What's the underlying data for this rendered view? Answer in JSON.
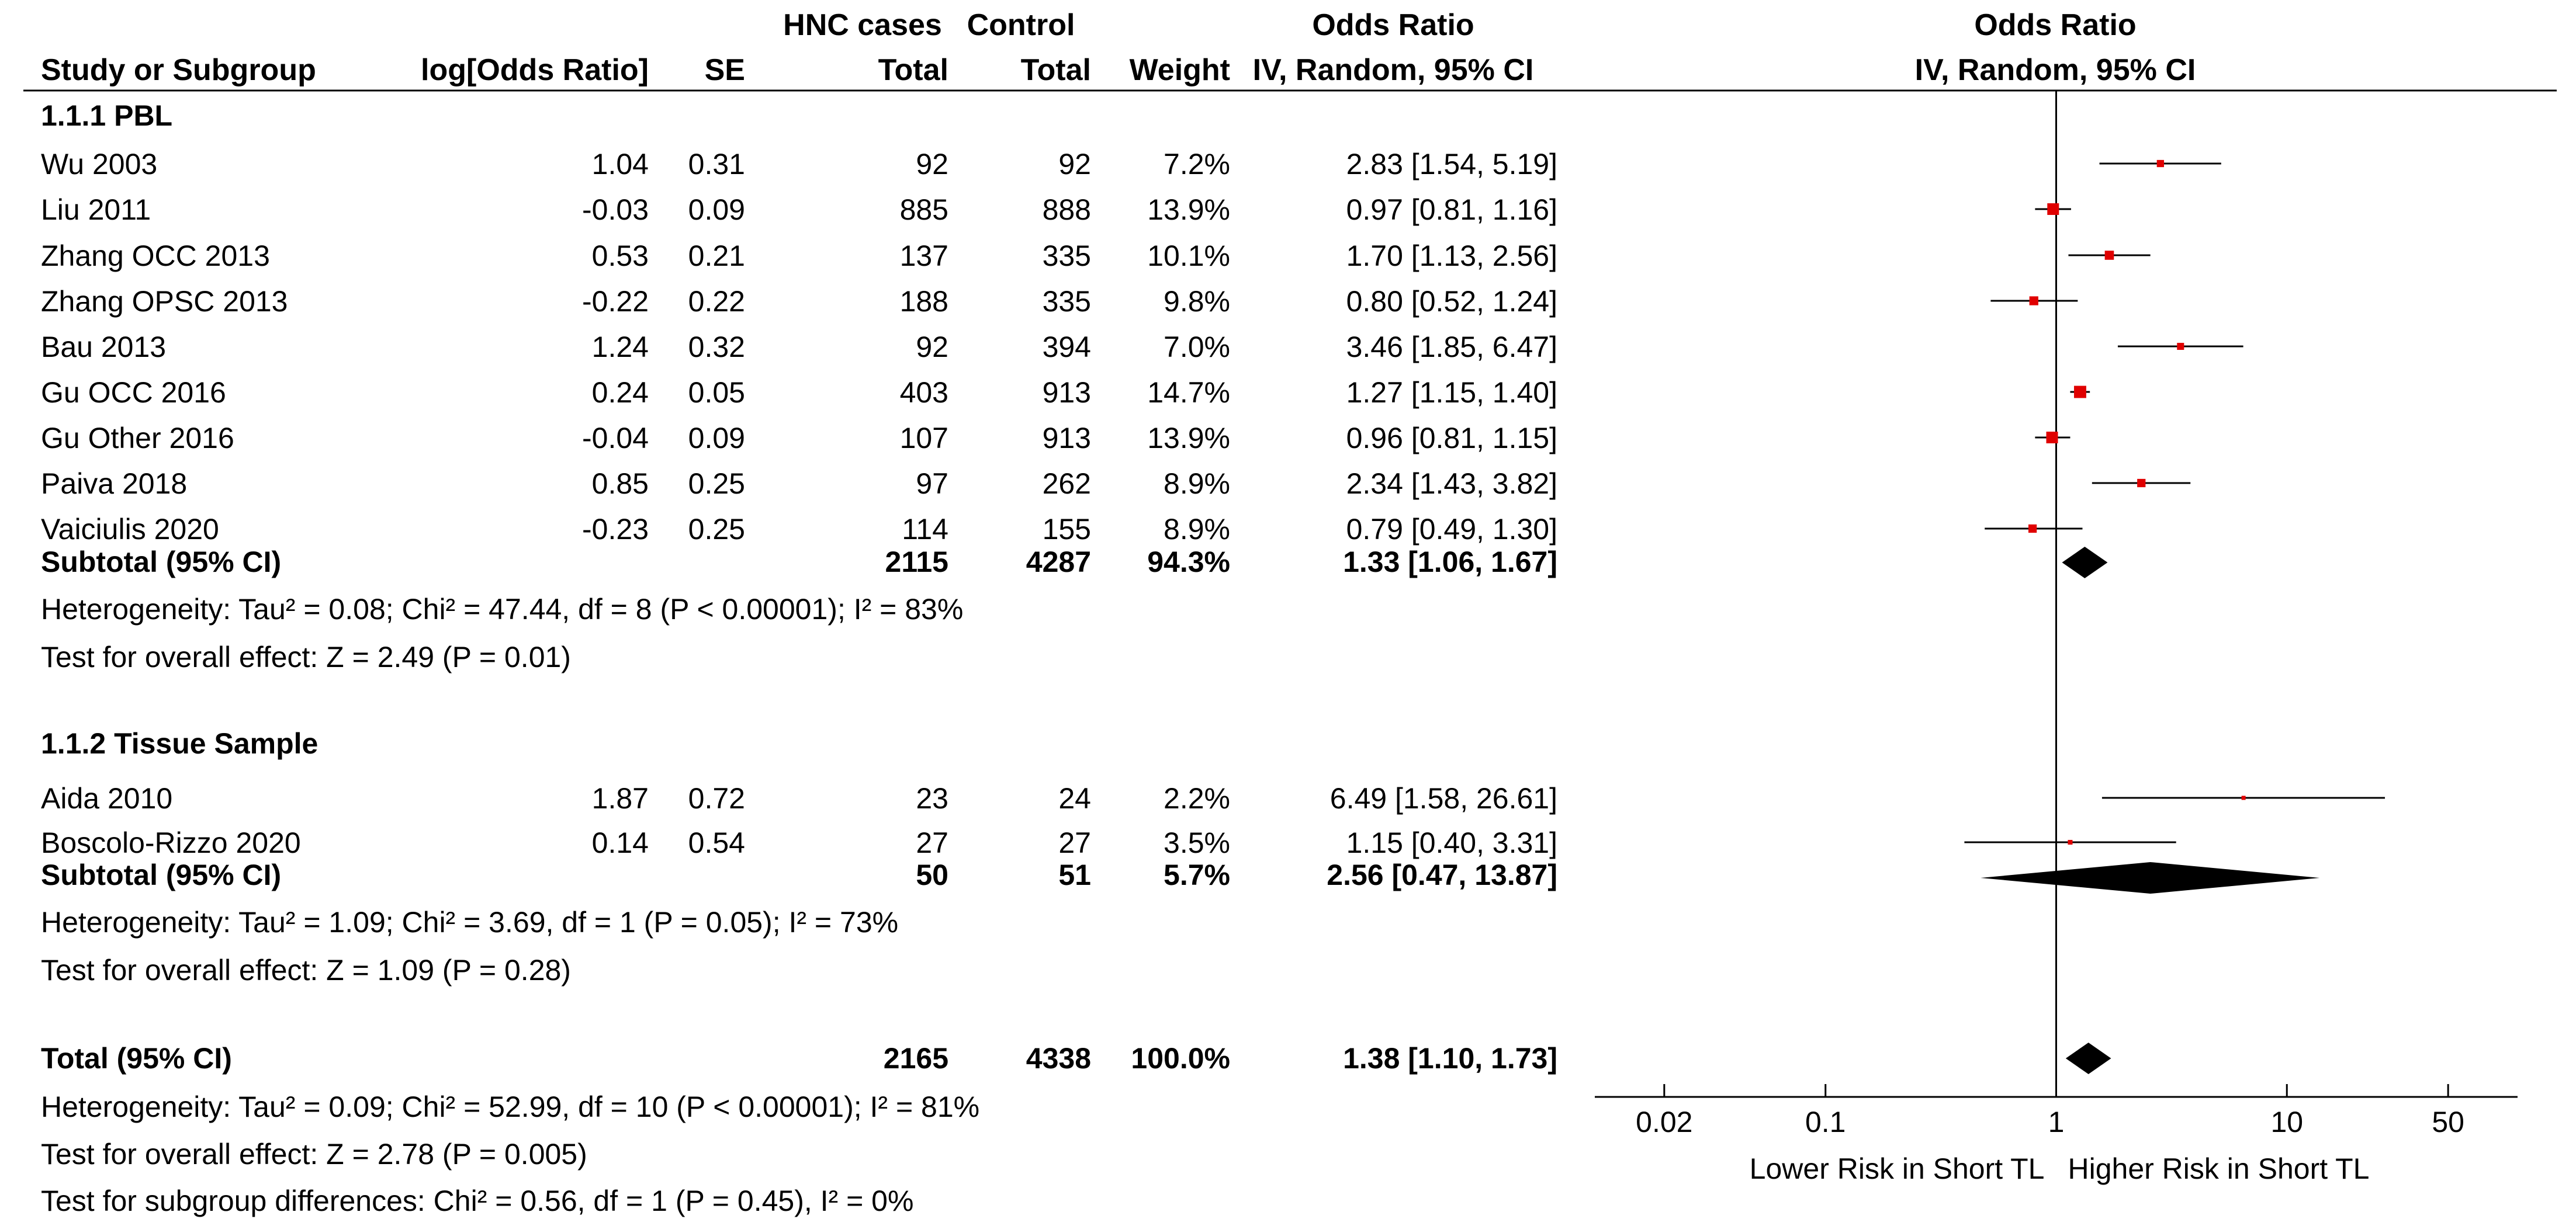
{
  "chart_data": {
    "type": "forest",
    "headers": {
      "group_top_cases": "HNC cases",
      "group_top_control": "Control",
      "or_top": "Odds Ratio",
      "study": "Study or Subgroup",
      "logor": "log[Odds Ratio]",
      "se": "SE",
      "cases_total": "Total",
      "control_total": "Total",
      "weight": "Weight",
      "or_method": "IV, Random, 95% CI",
      "plot_top": "Odds Ratio",
      "plot_method": "IV, Random, 95% CI"
    },
    "subgroups": [
      {
        "title": "1.1.1 PBL",
        "studies": [
          {
            "name": "Wu 2003",
            "logor": "1.04",
            "se": "0.31",
            "cases": "92",
            "control": "92",
            "weight": "7.2%",
            "ci_text": "2.83 [1.54, 5.19]",
            "or": 2.83,
            "lo": 1.54,
            "hi": 5.19
          },
          {
            "name": "Liu 2011",
            "logor": "-0.03",
            "se": "0.09",
            "cases": "885",
            "control": "888",
            "weight": "13.9%",
            "ci_text": "0.97 [0.81, 1.16]",
            "or": 0.97,
            "lo": 0.81,
            "hi": 1.16
          },
          {
            "name": "Zhang OCC 2013",
            "logor": "0.53",
            "se": "0.21",
            "cases": "137",
            "control": "335",
            "weight": "10.1%",
            "ci_text": "1.70 [1.13, 2.56]",
            "or": 1.7,
            "lo": 1.13,
            "hi": 2.56
          },
          {
            "name": "Zhang OPSC 2013",
            "logor": "-0.22",
            "se": "0.22",
            "cases": "188",
            "control": "335",
            "weight": "9.8%",
            "ci_text": "0.80 [0.52, 1.24]",
            "or": 0.8,
            "lo": 0.52,
            "hi": 1.24
          },
          {
            "name": "Bau 2013",
            "logor": "1.24",
            "se": "0.32",
            "cases": "92",
            "control": "394",
            "weight": "7.0%",
            "ci_text": "3.46 [1.85, 6.47]",
            "or": 3.46,
            "lo": 1.85,
            "hi": 6.47
          },
          {
            "name": "Gu OCC 2016",
            "logor": "0.24",
            "se": "0.05",
            "cases": "403",
            "control": "913",
            "weight": "14.7%",
            "ci_text": "1.27 [1.15, 1.40]",
            "or": 1.27,
            "lo": 1.15,
            "hi": 1.4
          },
          {
            "name": "Gu Other 2016",
            "logor": "-0.04",
            "se": "0.09",
            "cases": "107",
            "control": "913",
            "weight": "13.9%",
            "ci_text": "0.96 [0.81, 1.15]",
            "or": 0.96,
            "lo": 0.81,
            "hi": 1.15
          },
          {
            "name": "Paiva 2018",
            "logor": "0.85",
            "se": "0.25",
            "cases": "97",
            "control": "262",
            "weight": "8.9%",
            "ci_text": "2.34 [1.43, 3.82]",
            "or": 2.34,
            "lo": 1.43,
            "hi": 3.82
          },
          {
            "name": "Vaiciulis 2020",
            "logor": "-0.23",
            "se": "0.25",
            "cases": "114",
            "control": "155",
            "weight": "8.9%",
            "ci_text": "0.79 [0.49, 1.30]",
            "or": 0.79,
            "lo": 0.49,
            "hi": 1.3
          }
        ],
        "subtotal": {
          "label": "Subtotal (95% CI)",
          "cases": "2115",
          "control": "4287",
          "weight": "94.3%",
          "ci_text": "1.33 [1.06, 1.67]",
          "or": 1.33,
          "lo": 1.06,
          "hi": 1.67
        },
        "heterogeneity": "Heterogeneity: Tau² = 0.08; Chi² = 47.44, df = 8 (P < 0.00001); I² = 83%",
        "overall": "Test for overall effect: Z = 2.49 (P = 0.01)"
      },
      {
        "title": "1.1.2 Tissue Sample",
        "studies": [
          {
            "name": "Aida 2010",
            "logor": "1.87",
            "se": "0.72",
            "cases": "23",
            "control": "24",
            "weight": "2.2%",
            "ci_text": "6.49 [1.58, 26.61]",
            "or": 6.49,
            "lo": 1.58,
            "hi": 26.61
          },
          {
            "name": "Boscolo-Rizzo 2020",
            "logor": "0.14",
            "se": "0.54",
            "cases": "27",
            "control": "27",
            "weight": "3.5%",
            "ci_text": "1.15 [0.40, 3.31]",
            "or": 1.15,
            "lo": 0.4,
            "hi": 3.31
          }
        ],
        "subtotal": {
          "label": "Subtotal (95% CI)",
          "cases": "50",
          "control": "51",
          "weight": "5.7%",
          "ci_text": "2.56 [0.47, 13.87]",
          "or": 2.56,
          "lo": 0.47,
          "hi": 13.87
        },
        "heterogeneity": "Heterogeneity: Tau² = 1.09; Chi² = 3.69, df = 1 (P = 0.05); I² = 73%",
        "overall": "Test for overall effect: Z = 1.09 (P = 0.28)"
      }
    ],
    "total": {
      "label": "Total (95% CI)",
      "cases": "2165",
      "control": "4338",
      "weight": "100.0%",
      "ci_text": "1.38 [1.10, 1.73]",
      "or": 1.38,
      "lo": 1.1,
      "hi": 1.73
    },
    "total_heterogeneity": "Heterogeneity: Tau² = 0.09; Chi² = 52.99, df = 10 (P < 0.00001); I² = 81%",
    "total_overall": "Test for overall effect: Z = 2.78 (P = 0.005)",
    "subgroup_diff": "Test for subgroup differences: Chi² = 0.56, df = 1 (P = 0.45), I² = 0%",
    "x_axis": {
      "scale": "log",
      "range": [
        0.01,
        100
      ],
      "ticks": [
        0.02,
        0.1,
        1,
        10,
        50
      ],
      "tick_labels": [
        "0.02",
        "0.1",
        "1",
        "10",
        "50"
      ]
    },
    "favours_left": "Lower Risk in Short TL",
    "favours_right": "Higher Risk in Short TL",
    "colors": {
      "point": "#e00000",
      "line": "#000000",
      "diamond": "#000000"
    }
  }
}
